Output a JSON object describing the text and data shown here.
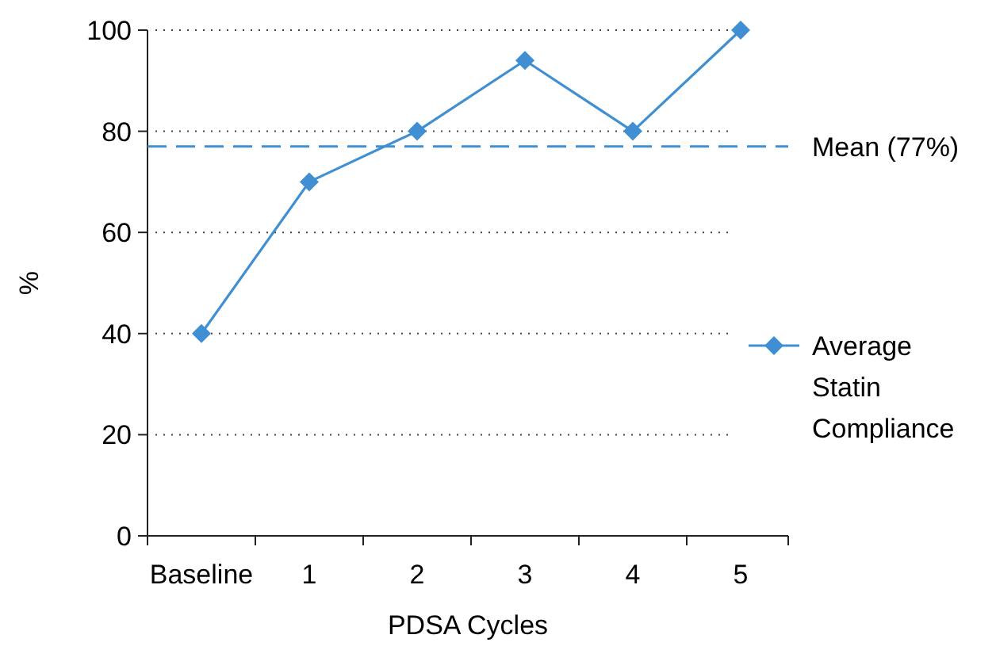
{
  "chart_data": {
    "type": "line",
    "xlabel": "PDSA Cycles",
    "ylabel": "%",
    "categories": [
      "Baseline",
      "1",
      "2",
      "3",
      "4",
      "5"
    ],
    "series": [
      {
        "name": "Average Statin Compliance",
        "color": "#3f8fd2",
        "values": [
          40,
          70,
          80,
          94,
          80,
          100
        ]
      }
    ],
    "ylim": [
      0,
      100
    ],
    "yticks": [
      0,
      20,
      40,
      60,
      80,
      100
    ],
    "grid": "y",
    "legend": "right",
    "marker": "diamond",
    "line_style": "solid",
    "ref_lines": [
      {
        "axis": "y",
        "value": 77,
        "label": "Mean (77%)",
        "color": "#3f8fd2",
        "line_style": "dashed"
      }
    ]
  }
}
